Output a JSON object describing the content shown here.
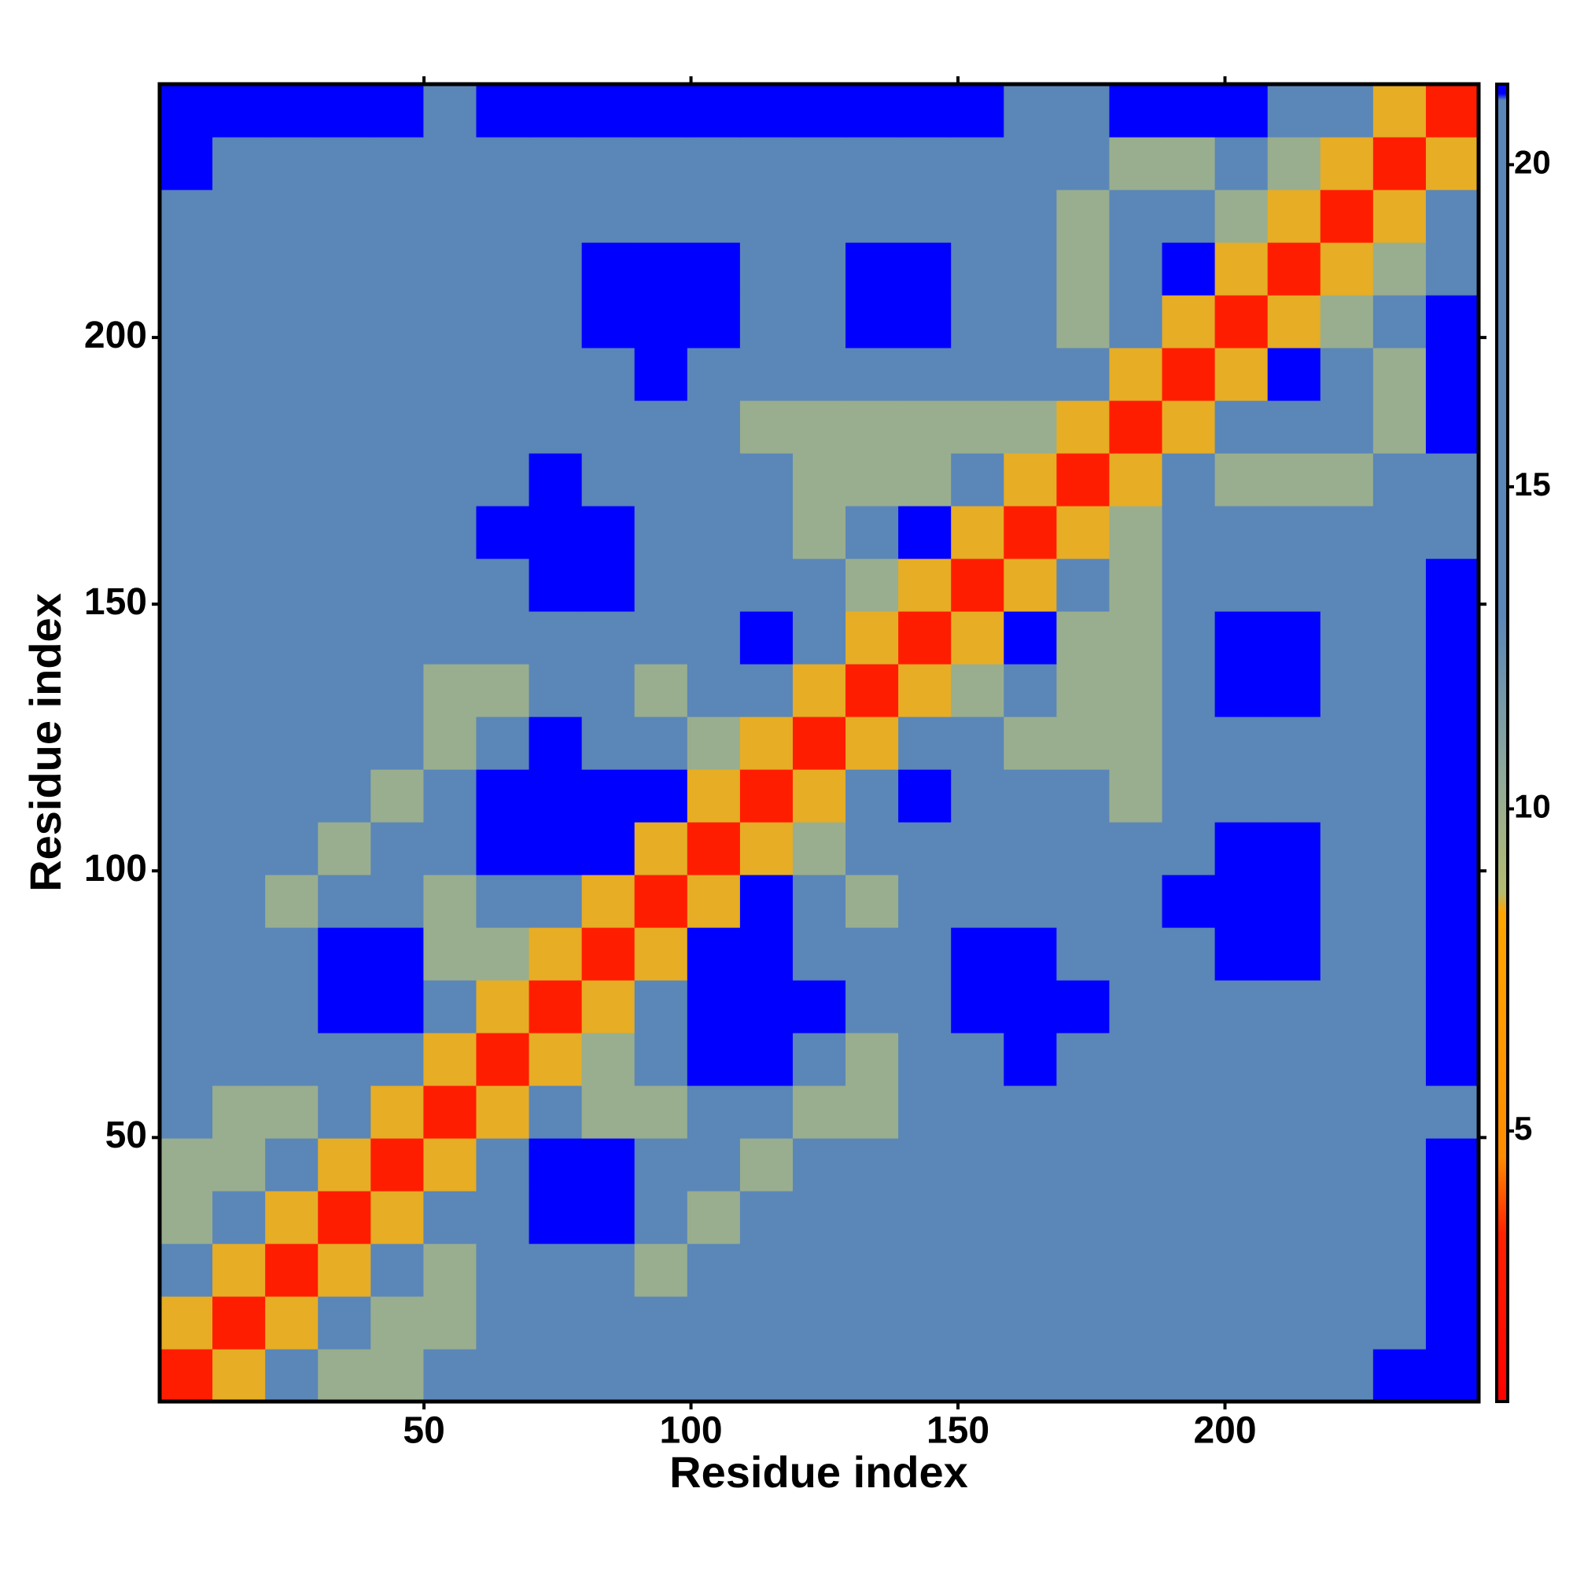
{
  "chart_data": {
    "type": "heatmap",
    "xlabel": "Residue index",
    "ylabel": "Residue index",
    "xlim": [
      0.5,
      247.5
    ],
    "ylim": [
      0.5,
      247.5
    ],
    "xticks": [
      50,
      100,
      150,
      200
    ],
    "yticks": [
      50,
      100,
      150,
      200
    ],
    "zlim": [
      0.8,
      21.25
    ],
    "zticks": [
      5,
      10,
      15,
      20
    ],
    "colorscale": [
      [
        0.8,
        "#ff0000"
      ],
      [
        3.4,
        "#ff2200"
      ],
      [
        4.6,
        "#ff8c00"
      ],
      [
        8.4,
        "#ffa500"
      ],
      [
        8.7,
        "#b4bc70"
      ],
      [
        10.5,
        "#8fa99a"
      ],
      [
        13,
        "#5b86b8"
      ],
      [
        21,
        "#5b86b8"
      ],
      [
        21.1,
        "#0000ff"
      ]
    ],
    "z": [
      [
        3,
        8.5,
        14,
        10,
        10,
        17,
        17,
        17,
        17,
        17,
        17,
        17,
        17,
        17,
        17,
        17,
        17,
        17,
        17,
        17,
        17,
        17,
        17,
        22,
        22
      ],
      [
        8.5,
        3,
        8.5,
        14,
        10,
        10,
        17,
        17,
        17,
        17,
        17,
        17,
        17,
        17,
        17,
        17,
        17,
        17,
        17,
        17,
        17,
        17,
        17,
        17,
        22
      ],
      [
        14,
        8.5,
        3,
        8.5,
        14,
        10,
        17,
        17,
        17,
        10,
        17,
        17,
        17,
        17,
        17,
        17,
        17,
        17,
        17,
        17,
        17,
        17,
        17,
        17,
        22
      ],
      [
        10,
        14,
        8.5,
        3,
        8.5,
        14,
        17,
        22,
        22,
        17,
        10,
        17,
        17,
        17,
        17,
        17,
        17,
        17,
        17,
        17,
        17,
        17,
        17,
        17,
        22
      ],
      [
        10,
        10,
        14,
        8.5,
        3,
        8.5,
        14,
        22,
        22,
        17,
        17,
        10,
        17,
        17,
        17,
        17,
        17,
        17,
        17,
        17,
        17,
        17,
        17,
        17,
        22
      ],
      [
        17,
        10,
        10,
        14,
        8.5,
        3,
        8.5,
        14,
        10,
        10,
        17,
        17,
        10,
        10,
        17,
        17,
        17,
        17,
        17,
        17,
        17,
        17,
        17,
        17,
        17
      ],
      [
        17,
        17,
        17,
        17,
        14,
        8.5,
        3,
        8.5,
        10,
        17,
        22,
        22,
        17,
        10,
        17,
        17,
        22,
        17,
        17,
        17,
        17,
        17,
        17,
        17,
        22
      ],
      [
        17,
        17,
        17,
        22,
        22,
        14,
        8.5,
        3,
        8.5,
        14,
        22,
        22,
        22,
        17,
        17,
        22,
        22,
        22,
        17,
        17,
        17,
        17,
        17,
        17,
        22
      ],
      [
        17,
        17,
        17,
        22,
        22,
        10,
        10,
        8.5,
        3,
        8.5,
        22,
        22,
        17,
        17,
        17,
        22,
        22,
        17,
        17,
        17,
        22,
        22,
        17,
        17,
        22
      ],
      [
        17,
        17,
        10,
        17,
        17,
        10,
        17,
        14,
        8.5,
        3,
        8.5,
        22,
        17,
        10,
        17,
        17,
        17,
        17,
        17,
        22,
        22,
        22,
        17,
        17,
        22
      ],
      [
        17,
        17,
        17,
        10,
        17,
        17,
        22,
        22,
        22,
        8.5,
        3,
        8.5,
        10,
        17,
        17,
        17,
        17,
        17,
        17,
        17,
        22,
        22,
        17,
        17,
        22
      ],
      [
        17,
        17,
        17,
        17,
        10,
        17,
        22,
        22,
        22,
        22,
        8.5,
        3,
        8.5,
        14,
        22,
        17,
        17,
        17,
        10,
        17,
        17,
        17,
        17,
        17,
        22
      ],
      [
        17,
        17,
        17,
        17,
        17,
        10,
        17,
        22,
        17,
        17,
        10,
        8.5,
        3,
        8.5,
        14,
        17,
        10,
        10,
        10,
        17,
        17,
        17,
        17,
        17,
        22
      ],
      [
        17,
        17,
        17,
        17,
        17,
        10,
        10,
        17,
        17,
        10,
        17,
        14,
        8.5,
        3,
        8.5,
        10,
        17,
        10,
        10,
        17,
        22,
        22,
        17,
        17,
        22
      ],
      [
        17,
        17,
        17,
        17,
        17,
        17,
        17,
        17,
        17,
        17,
        17,
        22,
        14,
        8.5,
        3,
        8.5,
        22,
        10,
        10,
        17,
        22,
        22,
        17,
        17,
        22
      ],
      [
        17,
        17,
        17,
        17,
        17,
        17,
        17,
        22,
        22,
        17,
        17,
        17,
        17,
        10,
        8.5,
        3,
        8.5,
        14,
        10,
        17,
        17,
        17,
        17,
        17,
        22
      ],
      [
        17,
        17,
        17,
        17,
        17,
        17,
        22,
        22,
        22,
        17,
        17,
        17,
        10,
        17,
        22,
        8.5,
        3,
        8.5,
        10,
        17,
        17,
        17,
        17,
        17,
        17
      ],
      [
        17,
        17,
        17,
        17,
        17,
        17,
        17,
        22,
        17,
        17,
        17,
        17,
        10,
        10,
        10,
        14,
        8.5,
        3,
        8.5,
        14,
        10,
        10,
        10,
        17,
        17
      ],
      [
        17,
        17,
        17,
        17,
        17,
        17,
        17,
        17,
        17,
        17,
        17,
        10,
        10,
        10,
        10,
        10,
        10,
        8.5,
        3,
        8.5,
        14,
        17,
        17,
        10,
        22
      ],
      [
        17,
        17,
        17,
        17,
        17,
        17,
        17,
        17,
        17,
        22,
        17,
        17,
        17,
        17,
        17,
        17,
        17,
        14,
        8.5,
        3,
        8.5,
        22,
        17,
        10,
        22
      ],
      [
        17,
        17,
        17,
        17,
        17,
        17,
        17,
        17,
        22,
        22,
        22,
        17,
        17,
        22,
        22,
        17,
        17,
        10,
        14,
        8.5,
        3,
        8.5,
        10,
        17,
        22
      ],
      [
        17,
        17,
        17,
        17,
        17,
        17,
        17,
        17,
        22,
        22,
        22,
        17,
        17,
        22,
        22,
        17,
        17,
        10,
        17,
        22,
        8.5,
        3,
        8.5,
        10,
        17
      ],
      [
        17,
        17,
        17,
        17,
        17,
        17,
        17,
        17,
        17,
        17,
        17,
        17,
        17,
        17,
        17,
        17,
        17,
        10,
        17,
        17,
        10,
        8.5,
        3,
        8.5,
        14
      ],
      [
        22,
        17,
        17,
        17,
        17,
        17,
        17,
        17,
        17,
        17,
        17,
        17,
        17,
        17,
        17,
        17,
        17,
        17,
        10,
        10,
        17,
        10,
        8.5,
        3,
        8.5
      ],
      [
        22,
        22,
        22,
        22,
        22,
        17,
        22,
        22,
        22,
        22,
        22,
        22,
        22,
        22,
        22,
        22,
        17,
        17,
        22,
        22,
        22,
        17,
        14,
        8.5,
        3
      ]
    ]
  }
}
